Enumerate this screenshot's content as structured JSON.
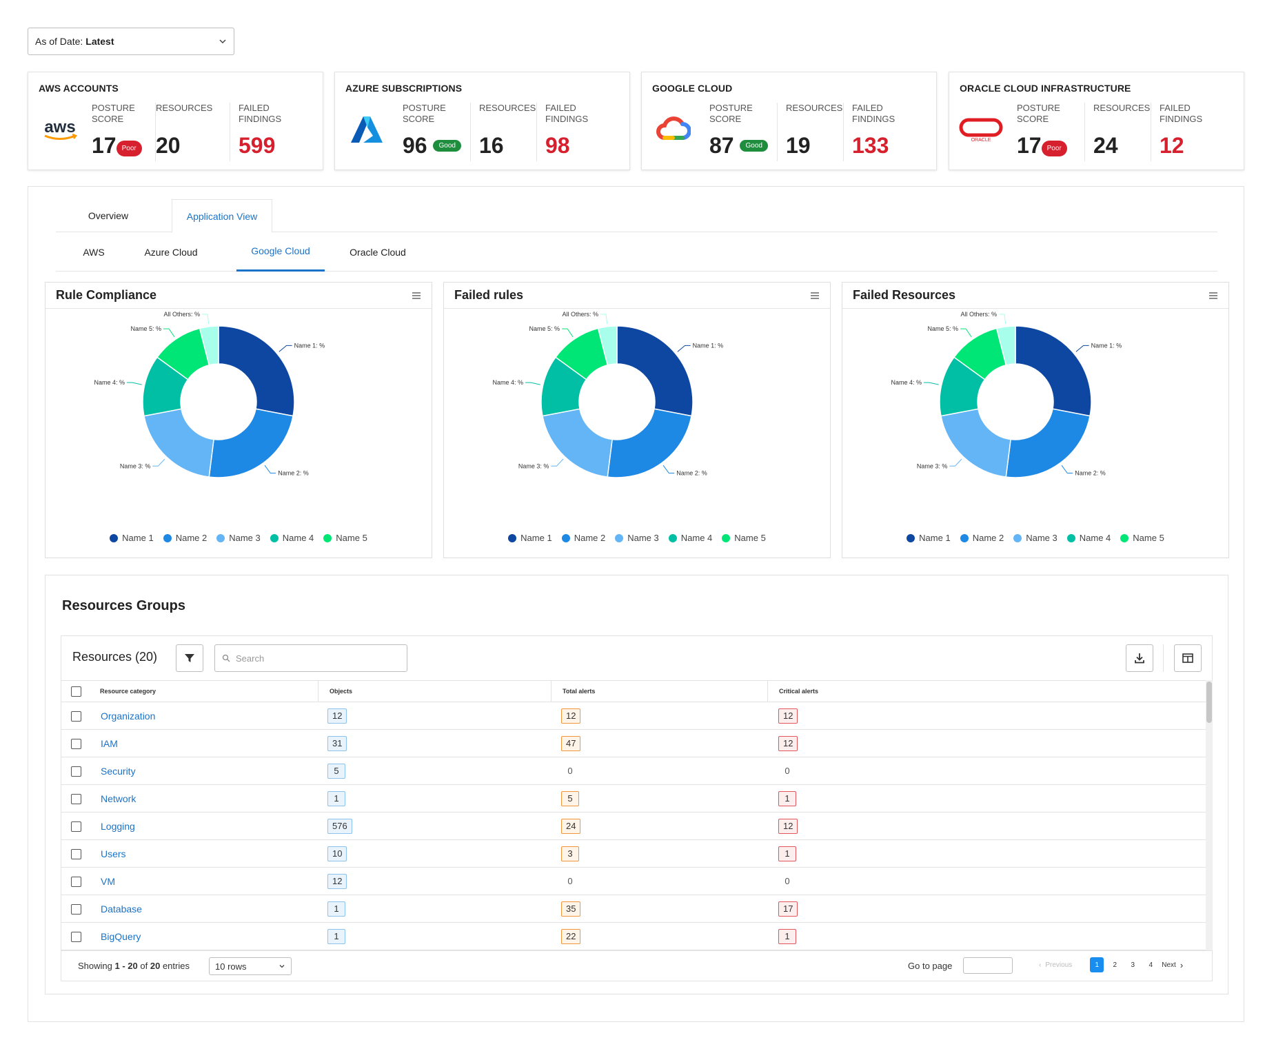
{
  "date_selector": {
    "label": "As of Date:",
    "value": "Latest"
  },
  "cards": [
    {
      "title": "AWS ACCOUNTS",
      "logo": "aws-logo",
      "posture_label": "POSTURE SCORE",
      "posture": "17",
      "badge": "Poor",
      "resources_label": "RESOURCES",
      "resources": "20",
      "failed_label": "FAILED FINDINGS",
      "failed": "599"
    },
    {
      "title": "AZURE SUBSCRIPTIONS",
      "logo": "azure-logo",
      "posture_label": "POSTURE SCORE",
      "posture": "96",
      "badge": "Good",
      "resources_label": "RESOURCES",
      "resources": "16",
      "failed_label": "FAILED FINDINGS",
      "failed": "98"
    },
    {
      "title": "GOOGLE CLOUD",
      "logo": "google-cloud-logo",
      "posture_label": "POSTURE SCORE",
      "posture": "87",
      "badge": "Good",
      "resources_label": "RESOURCES",
      "resources": "19",
      "failed_label": "FAILED FINDINGS",
      "failed": "133"
    },
    {
      "title": "ORACLE CLOUD INFRASTRUCTURE",
      "logo": "oracle-logo",
      "logo_text": "ORACLE",
      "posture_label": "POSTURE SCORE",
      "posture": "17",
      "badge": "Poor",
      "resources_label": "RESOURCES",
      "resources": "24",
      "failed_label": "FAILED FINDINGS",
      "failed": "12"
    }
  ],
  "main_tabs": [
    {
      "label": "Overview"
    },
    {
      "label": "Application View",
      "active": true
    }
  ],
  "cloud_tabs": [
    {
      "label": "AWS"
    },
    {
      "label": "Azure Cloud"
    },
    {
      "label": "Google Cloud",
      "active": true
    },
    {
      "label": "Oracle Cloud"
    }
  ],
  "charts": [
    {
      "title": "Rule Compliance"
    },
    {
      "title": "Failed rules"
    },
    {
      "title": "Failed Resources"
    }
  ],
  "chart_data": {
    "type": "pie",
    "donut": true,
    "categories": [
      "Name 1",
      "Name 2",
      "Name 3",
      "Name 4",
      "Name 5",
      "All Others"
    ],
    "values": [
      28,
      24,
      20,
      13,
      11,
      4
    ],
    "labels": [
      "Name 1: %",
      "Name 2: %",
      "Name 3: %",
      "Name 4: %",
      "Name 5: %",
      "All Others: %"
    ],
    "legend": [
      "Name 1",
      "Name 2",
      "Name 3",
      "Name 4",
      "Name 5"
    ],
    "colors": [
      "#0d47a1",
      "#1e88e5",
      "#64b5f6",
      "#00bfa5",
      "#00e676",
      "#a7ffeb"
    ],
    "legend_position": "bottom"
  },
  "resources": {
    "section_title": "Resources Groups",
    "count_label": "Resources (20)",
    "search_placeholder": "Search",
    "columns": [
      "Resource category",
      "Objects",
      "Total alerts",
      "Critical alerts"
    ],
    "rows": [
      {
        "category": "Organization",
        "objects": "12",
        "total": "12",
        "critical": "12"
      },
      {
        "category": "IAM",
        "objects": "31",
        "total": "47",
        "critical": "12"
      },
      {
        "category": "Security",
        "objects": "5",
        "total": "0",
        "critical": "0"
      },
      {
        "category": "Network",
        "objects": "1",
        "total": "5",
        "critical": "1"
      },
      {
        "category": "Logging",
        "objects": "576",
        "total": "24",
        "critical": "12"
      },
      {
        "category": "Users",
        "objects": "10",
        "total": "3",
        "critical": "1"
      },
      {
        "category": "VM",
        "objects": "12",
        "total": "0",
        "critical": "0"
      },
      {
        "category": "Database",
        "objects": "1",
        "total": "35",
        "critical": "17"
      },
      {
        "category": "BigQuery",
        "objects": "1",
        "total": "22",
        "critical": "1"
      }
    ],
    "footer": {
      "showing_prefix": "Showing",
      "showing_range": "1 - 20",
      "showing_of": "of",
      "showing_total": "20",
      "showing_suffix": "entries",
      "rows_select": "10 rows",
      "goto_label": "Go to page",
      "prev_label": "Previous",
      "next_label": "Next",
      "pages": [
        "1",
        "2",
        "3",
        "4"
      ],
      "current_page": "1"
    }
  },
  "colors": {
    "accent": "#1a73c8",
    "danger": "#d7202e",
    "good": "#1e8e3e"
  }
}
